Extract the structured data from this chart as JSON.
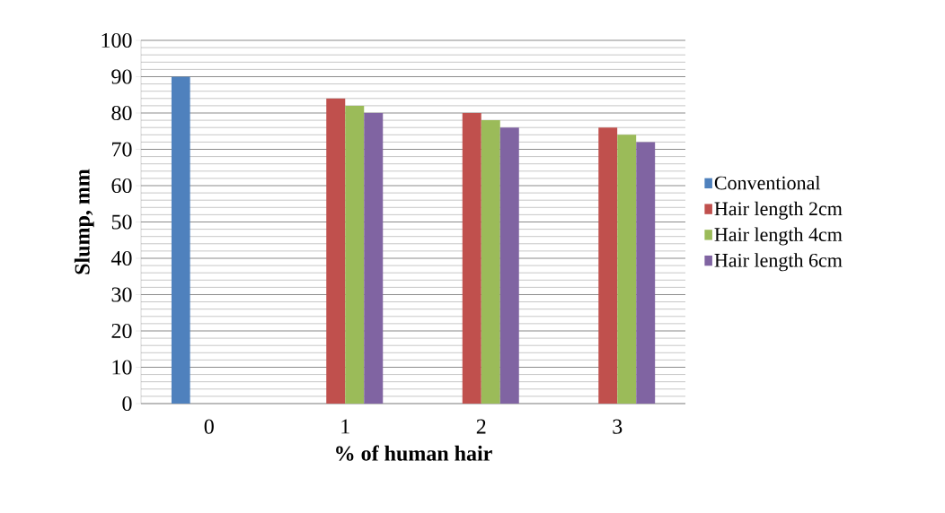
{
  "chart_data": {
    "type": "bar",
    "xlabel": "% of human hair",
    "ylabel": "Slump, mm",
    "categories": [
      "0",
      "1",
      "2",
      "3"
    ],
    "series": [
      {
        "name": "Conventional",
        "color": "#4f81bd",
        "values": [
          90,
          null,
          null,
          null
        ]
      },
      {
        "name": "Hair length 2cm",
        "color": "#c0504d",
        "values": [
          null,
          84,
          80,
          76
        ]
      },
      {
        "name": "Hair length 4cm",
        "color": "#9bbb59",
        "values": [
          null,
          82,
          78,
          74
        ]
      },
      {
        "name": "Hair length 6cm",
        "color": "#8064a2",
        "values": [
          null,
          80,
          76,
          72
        ]
      }
    ],
    "ylim": [
      0,
      100
    ],
    "yticks": [
      0,
      10,
      20,
      30,
      40,
      50,
      60,
      70,
      80,
      90,
      100
    ],
    "grid": true,
    "legend": "right"
  }
}
